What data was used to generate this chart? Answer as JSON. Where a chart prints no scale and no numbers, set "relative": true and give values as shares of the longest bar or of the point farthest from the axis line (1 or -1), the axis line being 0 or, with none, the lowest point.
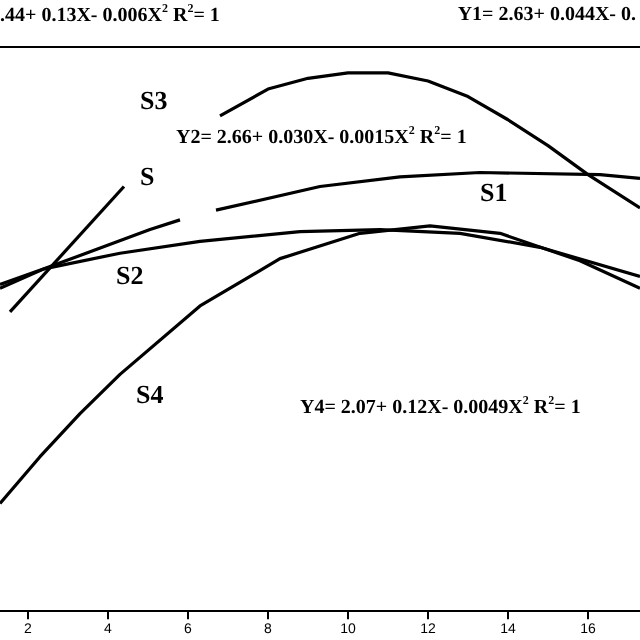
{
  "chart_data": {
    "type": "line",
    "relative": true,
    "xlim": [
      1.3,
      17.3
    ],
    "xticks": [
      2,
      4,
      6,
      8,
      10,
      12,
      14,
      16
    ],
    "grid": false,
    "legend": false,
    "marker": "none",
    "line_style": "solid",
    "series": [
      {
        "name": "S3",
        "color": "#000000",
        "x": [
          6.8,
          8,
          9,
          10,
          11,
          12,
          13,
          14,
          15,
          16,
          17.3
        ],
        "values": [
          0.92,
          0.97,
          0.99,
          1,
          1,
          0.985,
          0.956,
          0.913,
          0.865,
          0.811,
          0.749
        ]
      },
      {
        "name": "S1",
        "color": "#000000",
        "x": [
          1.3,
          2.4,
          5.05,
          5.8,
          6.2,
          6.7,
          9.3,
          11.3,
          13.3,
          16.3,
          17.3
        ],
        "values": [
          0.6,
          0.636,
          0.709,
          0.727,
          null,
          0.745,
          0.789,
          0.807,
          0.815,
          0.811,
          0.804
        ]
      },
      {
        "name": "S2",
        "color": "#000000",
        "x": [
          1.3,
          2.4,
          4.3,
          6.3,
          8.8,
          10.8,
          12.8,
          14.8,
          17.3
        ],
        "values": [
          0.607,
          0.636,
          0.665,
          0.687,
          0.705,
          0.709,
          0.702,
          0.676,
          0.622
        ]
      },
      {
        "name": "S4",
        "color": "#000000",
        "x": [
          1.3,
          2.3,
          3.3,
          4.3,
          6.3,
          8.3,
          10.3,
          12.05,
          13.8,
          15.8,
          17.3
        ],
        "values": [
          0.2,
          0.287,
          0.367,
          0.44,
          0.567,
          0.655,
          0.702,
          0.716,
          0.702,
          0.651,
          0.6
        ]
      },
      {
        "name": "S",
        "color": "#000000",
        "x": [
          1.55,
          4.4
        ],
        "values": [
          0.556,
          0.789
        ]
      }
    ],
    "annotations": [
      ".44+ 0.13X- 0.006X$^{2}$   R$^{2}$= 1",
      "Y1= 2.63+ 0.044X- 0.",
      "Y2= 2.66+ 0.030X- 0.0015X$^{2}$   R$^{2}$= 1",
      "Y4= 2.07+ 0.12X- 0.0049X$^{2}$   R$^{2}$= 1"
    ]
  }
}
